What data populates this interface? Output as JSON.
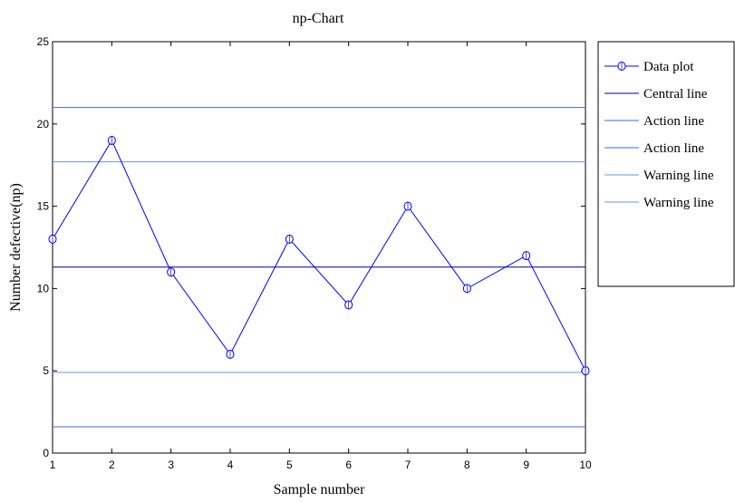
{
  "chart_data": {
    "type": "line",
    "title": "np-Chart",
    "xlabel": "Sample number",
    "ylabel": "Number defective(np)",
    "xlim": [
      1,
      10
    ],
    "ylim": [
      0,
      25
    ],
    "xticks": [
      1,
      2,
      3,
      4,
      5,
      6,
      7,
      8,
      9,
      10
    ],
    "yticks": [
      0,
      5,
      10,
      15,
      20,
      25
    ],
    "grid": false,
    "legend_position": "outside-right-top",
    "series": [
      {
        "name": "Data plot",
        "kind": "line-with-circle-markers",
        "color": "#0000ff",
        "x": [
          1,
          2,
          3,
          4,
          5,
          6,
          7,
          8,
          9,
          10
        ],
        "values": [
          13,
          19,
          11,
          6,
          13,
          9,
          15,
          10,
          12,
          5
        ]
      },
      {
        "name": "Central line",
        "kind": "hline",
        "color": "#00008b",
        "value": 11.3
      },
      {
        "name": "Action line",
        "kind": "hline",
        "color": "#4169e1",
        "value": 21.0
      },
      {
        "name": "Action line",
        "kind": "hline",
        "color": "#4169e1",
        "value": 1.6
      },
      {
        "name": "Warning line",
        "kind": "hline",
        "color": "#6495ed",
        "value": 17.7
      },
      {
        "name": "Warning line",
        "kind": "hline",
        "color": "#6495ed",
        "value": 4.9
      }
    ]
  }
}
